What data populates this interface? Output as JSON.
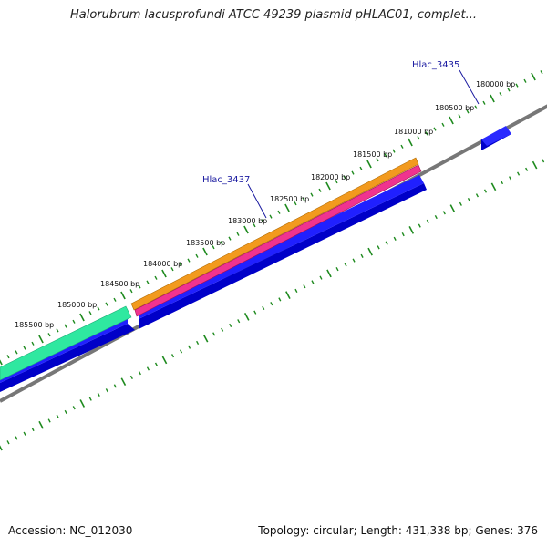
{
  "title": "Halorubrum lacusprofundi ATCC 49239 plasmid pHLAC01, complet...",
  "footer": {
    "accession": "Accession: NC_012030",
    "stats": "Topology: circular; Length: 431,338 bp; Genes: 376"
  },
  "tick_labels": [
    "180000 bp",
    "180500 bp",
    "181000 bp",
    "181500 bp",
    "182000 bp",
    "182500 bp",
    "183000 bp",
    "183500 bp",
    "184000 bp",
    "184500 bp",
    "185000 bp",
    "185500 bp"
  ],
  "gene_labels": [
    "Hlac_3435",
    "Hlac_3437"
  ],
  "colors": {
    "forward_cds": "#1010e0",
    "backbone": "#777777",
    "orange_track": "#f29a1e",
    "pink_track": "#f0338f",
    "green_track": "#2fe8a0",
    "tick": "#1e8a1e",
    "gene_label": "#1a1aa0"
  }
}
